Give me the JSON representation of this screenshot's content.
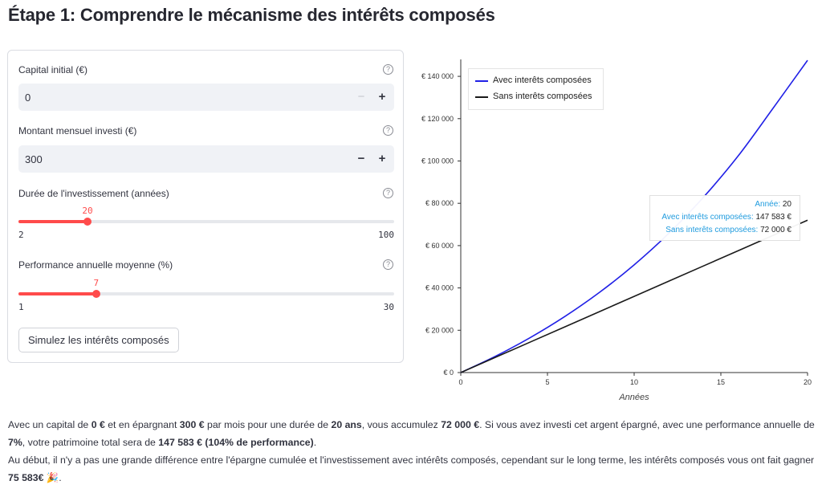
{
  "page": {
    "title": "Étape 1: Comprendre le mécanisme des intérêts composés"
  },
  "form": {
    "capital": {
      "label": "Capital initial (€)",
      "value": "0",
      "minus": "−",
      "plus": "+"
    },
    "monthly": {
      "label": "Montant mensuel investi (€)",
      "value": "300",
      "minus": "−",
      "plus": "+"
    },
    "duration": {
      "label": "Durée de l'investissement (années)",
      "value": "20",
      "min": "2",
      "max": "100",
      "value_num": 20,
      "min_num": 2,
      "max_num": 100
    },
    "performance": {
      "label": "Performance annuelle moyenne (%)",
      "value": "7",
      "min": "1",
      "max": "30",
      "value_num": 7,
      "min_num": 1,
      "max_num": 30
    },
    "help_glyph": "?",
    "simulate_label": "Simulez les intérêts composés"
  },
  "colors": {
    "accent": "#ff4b4b",
    "compound": "#2020e6",
    "simple": "#1a1a1a",
    "tooltip_key": "#1f9bde"
  },
  "chart_data": {
    "type": "line",
    "xlabel": "Années",
    "ylabel": "",
    "xlim": [
      0,
      20
    ],
    "ylim": [
      0,
      148000
    ],
    "x_ticks": [
      "0",
      "5",
      "10",
      "15",
      "20"
    ],
    "y_ticks": [
      "€ 0",
      "€ 20 000",
      "€ 40 000",
      "€ 60 000",
      "€ 80 000",
      "€ 100 000",
      "€ 120 000",
      "€ 140 000"
    ],
    "x": [
      0,
      2,
      4,
      6,
      8,
      10,
      12,
      14,
      16,
      18,
      20
    ],
    "series": [
      {
        "name": "Avec interêts composées",
        "values": [
          0,
          7700,
          16500,
          26500,
          37900,
          50900,
          65800,
          82900,
          102400,
          124800,
          147583
        ]
      },
      {
        "name": "Sans interêts composées",
        "values": [
          0,
          7200,
          14400,
          21600,
          28800,
          36000,
          43200,
          50400,
          57600,
          64800,
          72000
        ]
      }
    ],
    "legend_position": "top-left",
    "grid": false
  },
  "tooltip": {
    "year_label": "Année",
    "year_value": "20",
    "compound_label": "Avec interêts composées",
    "compound_value": "147 583 €",
    "simple_label": "Sans interêts composées",
    "simple_value": "72 000 €"
  },
  "summary": {
    "p1": "Avec un capital de ",
    "capital": "0 €",
    "p2": " et en épargnant ",
    "monthly": "300 €",
    "p3": " par mois pour une durée de ",
    "years": "20 ans",
    "p4": ", vous accumulez ",
    "saved": "72 000 €",
    "p5": ". Si vous avez investi cet argent épargné, avec une performance annuelle de ",
    "rate": "7%",
    "p6": ", votre patrimoine total sera de ",
    "total": "147 583 € (104% de performance)",
    "p7": ".",
    "line2": "Au début, il n'y a pas une grande différence entre l'épargne cumulée et l'investissement avec intérêts composés, cependant sur le long terme, les intérêts composés vous ont fait gagner ",
    "gain": "75 583€",
    "emoji": "🎉",
    "end": "."
  }
}
